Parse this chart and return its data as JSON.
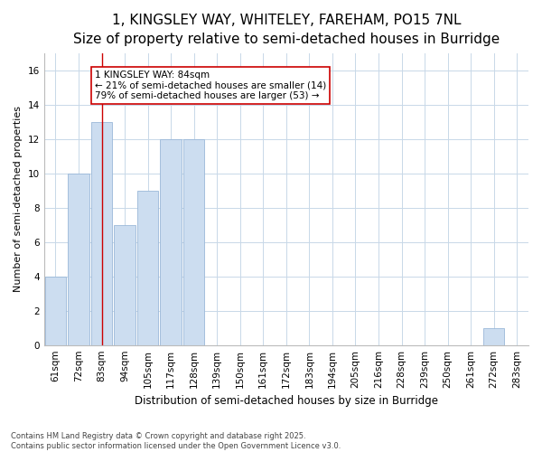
{
  "title": "1, KINGSLEY WAY, WHITELEY, FAREHAM, PO15 7NL",
  "subtitle": "Size of property relative to semi-detached houses in Burridge",
  "xlabel": "Distribution of semi-detached houses by size in Burridge",
  "ylabel": "Number of semi-detached properties",
  "categories": [
    "61sqm",
    "72sqm",
    "83sqm",
    "94sqm",
    "105sqm",
    "117sqm",
    "128sqm",
    "139sqm",
    "150sqm",
    "161sqm",
    "172sqm",
    "183sqm",
    "194sqm",
    "205sqm",
    "216sqm",
    "228sqm",
    "239sqm",
    "250sqm",
    "261sqm",
    "272sqm",
    "283sqm"
  ],
  "values": [
    4,
    10,
    13,
    7,
    9,
    12,
    12,
    0,
    0,
    0,
    0,
    0,
    0,
    0,
    0,
    0,
    0,
    0,
    0,
    1,
    0
  ],
  "bar_color": "#ccddf0",
  "bar_edge_color": "#9ab8d8",
  "vline_index": 2,
  "vline_color": "#cc0000",
  "annotation_text": "1 KINGSLEY WAY: 84sqm\n← 21% of semi-detached houses are smaller (14)\n79% of semi-detached houses are larger (53) →",
  "annotation_box_facecolor": "#ffffff",
  "annotation_box_edgecolor": "#cc0000",
  "ylim": [
    0,
    17
  ],
  "yticks": [
    0,
    2,
    4,
    6,
    8,
    10,
    12,
    14,
    16
  ],
  "title_fontsize": 11,
  "subtitle_fontsize": 9.5,
  "xlabel_fontsize": 8.5,
  "ylabel_fontsize": 8,
  "tick_fontsize": 7.5,
  "annotation_fontsize": 7.5,
  "footer_line1": "Contains HM Land Registry data © Crown copyright and database right 2025.",
  "footer_line2": "Contains public sector information licensed under the Open Government Licence v3.0.",
  "background_color": "#ffffff",
  "plot_bg_color": "#ffffff",
  "grid_color": "#c8d8e8"
}
